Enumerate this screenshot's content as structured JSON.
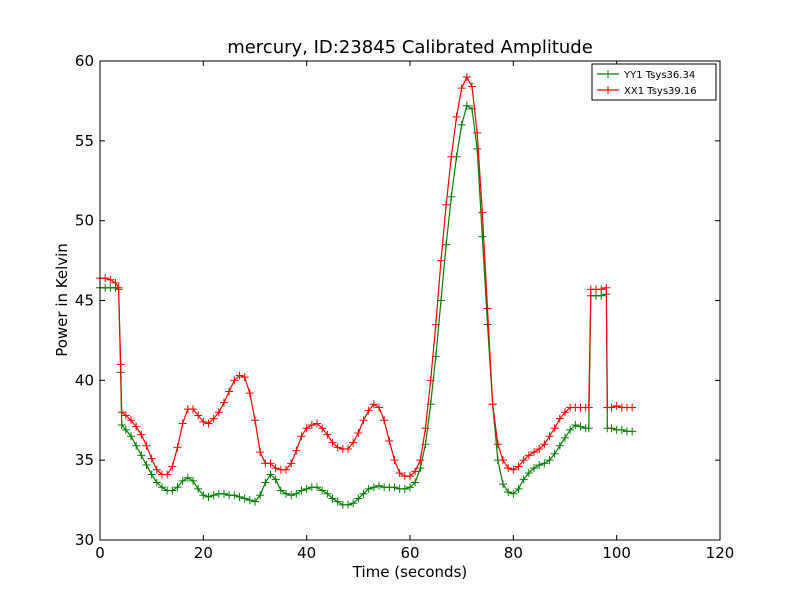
{
  "chart_data": {
    "type": "line",
    "title": "mercury, ID:23845 Calibrated Amplitude",
    "xlabel": "Time (seconds)",
    "ylabel": "Power in Kelvin",
    "xlim": [
      0,
      120
    ],
    "ylim": [
      30,
      60
    ],
    "xticks": [
      "0",
      "20",
      "40",
      "60",
      "80",
      "100",
      "120"
    ],
    "yticks": [
      "30",
      "35",
      "40",
      "45",
      "50",
      "55",
      "60"
    ],
    "grid": false,
    "legend_position": "top-right",
    "marker": "plus",
    "series": [
      {
        "name": "YY1 Tsys36.34",
        "color": "#008000",
        "points": [
          [
            0,
            45.8
          ],
          [
            1,
            45.8
          ],
          [
            2,
            45.8
          ],
          [
            3,
            45.8
          ],
          [
            3.6,
            45.7
          ],
          [
            4,
            40.5
          ],
          [
            4.2,
            37.2
          ],
          [
            5,
            36.9
          ],
          [
            6,
            36.5
          ],
          [
            7,
            35.9
          ],
          [
            8,
            35.3
          ],
          [
            9,
            34.7
          ],
          [
            10,
            34.1
          ],
          [
            11,
            33.6
          ],
          [
            12,
            33.3
          ],
          [
            13,
            33.1
          ],
          [
            14,
            33.1
          ],
          [
            15,
            33.3
          ],
          [
            16,
            33.7
          ],
          [
            17,
            33.9
          ],
          [
            18,
            33.7
          ],
          [
            19,
            33.2
          ],
          [
            20,
            32.8
          ],
          [
            21,
            32.7
          ],
          [
            22,
            32.8
          ],
          [
            23,
            32.9
          ],
          [
            24,
            32.9
          ],
          [
            25,
            32.8
          ],
          [
            26,
            32.8
          ],
          [
            27,
            32.7
          ],
          [
            28,
            32.6
          ],
          [
            29,
            32.5
          ],
          [
            30,
            32.4
          ],
          [
            31,
            32.8
          ],
          [
            32,
            33.6
          ],
          [
            33,
            34.1
          ],
          [
            34,
            33.8
          ],
          [
            35,
            33.1
          ],
          [
            36,
            32.9
          ],
          [
            37,
            32.8
          ],
          [
            38,
            32.9
          ],
          [
            39,
            33.1
          ],
          [
            40,
            33.2
          ],
          [
            41,
            33.3
          ],
          [
            42,
            33.3
          ],
          [
            43,
            33.1
          ],
          [
            44,
            32.9
          ],
          [
            45,
            32.6
          ],
          [
            46,
            32.4
          ],
          [
            47,
            32.2
          ],
          [
            48,
            32.2
          ],
          [
            49,
            32.3
          ],
          [
            50,
            32.6
          ],
          [
            51,
            32.9
          ],
          [
            52,
            33.2
          ],
          [
            53,
            33.3
          ],
          [
            54,
            33.4
          ],
          [
            55,
            33.3
          ],
          [
            56,
            33.3
          ],
          [
            57,
            33.3
          ],
          [
            58,
            33.2
          ],
          [
            59,
            33.2
          ],
          [
            60,
            33.3
          ],
          [
            61,
            33.6
          ],
          [
            62,
            34.5
          ],
          [
            63,
            36.0
          ],
          [
            64,
            38.5
          ],
          [
            65,
            41.5
          ],
          [
            66,
            45.0
          ],
          [
            67,
            48.5
          ],
          [
            68,
            51.5
          ],
          [
            69,
            54.0
          ],
          [
            70,
            56.0
          ],
          [
            71,
            57.2
          ],
          [
            72,
            57.0
          ],
          [
            73,
            54.5
          ],
          [
            74,
            49.0
          ],
          [
            75,
            43.5
          ],
          [
            76,
            38.5
          ],
          [
            77,
            35.0
          ],
          [
            78,
            33.5
          ],
          [
            79,
            33.0
          ],
          [
            80,
            32.9
          ],
          [
            81,
            33.2
          ],
          [
            82,
            33.8
          ],
          [
            83,
            34.2
          ],
          [
            84,
            34.5
          ],
          [
            85,
            34.7
          ],
          [
            86,
            34.8
          ],
          [
            87,
            35.0
          ],
          [
            88,
            35.4
          ],
          [
            89,
            35.9
          ],
          [
            90,
            36.4
          ],
          [
            91,
            36.9
          ],
          [
            92,
            37.2
          ],
          [
            93,
            37.1
          ],
          [
            94,
            37.0
          ],
          [
            94.6,
            37.0
          ],
          [
            95,
            45.3
          ],
          [
            96,
            45.3
          ],
          [
            97,
            45.3
          ],
          [
            98,
            45.4
          ],
          [
            98.2,
            37.0
          ],
          [
            99,
            37.0
          ],
          [
            100,
            36.9
          ],
          [
            101,
            36.9
          ],
          [
            102,
            36.8
          ],
          [
            103,
            36.8
          ]
        ]
      },
      {
        "name": "XX1 Tsys39.16",
        "color": "#ff0000",
        "points": [
          [
            0,
            46.4
          ],
          [
            1,
            46.4
          ],
          [
            2,
            46.3
          ],
          [
            3,
            46.1
          ],
          [
            3.6,
            45.8
          ],
          [
            4,
            41.0
          ],
          [
            4.2,
            38.0
          ],
          [
            5,
            37.8
          ],
          [
            6,
            37.5
          ],
          [
            7,
            37.1
          ],
          [
            8,
            36.6
          ],
          [
            9,
            35.9
          ],
          [
            10,
            35.1
          ],
          [
            11,
            34.4
          ],
          [
            12,
            34.1
          ],
          [
            13,
            34.1
          ],
          [
            14,
            34.6
          ],
          [
            15,
            35.8
          ],
          [
            16,
            37.3
          ],
          [
            17,
            38.2
          ],
          [
            18,
            38.2
          ],
          [
            19,
            37.8
          ],
          [
            20,
            37.4
          ],
          [
            21,
            37.3
          ],
          [
            22,
            37.6
          ],
          [
            23,
            38.0
          ],
          [
            24,
            38.6
          ],
          [
            25,
            39.3
          ],
          [
            26,
            40.0
          ],
          [
            27,
            40.3
          ],
          [
            28,
            40.2
          ],
          [
            29,
            39.2
          ],
          [
            30,
            37.5
          ],
          [
            31,
            35.5
          ],
          [
            32,
            34.8
          ],
          [
            33,
            34.8
          ],
          [
            34,
            34.5
          ],
          [
            35,
            34.4
          ],
          [
            36,
            34.4
          ],
          [
            37,
            34.8
          ],
          [
            38,
            35.6
          ],
          [
            39,
            36.5
          ],
          [
            40,
            37.0
          ],
          [
            41,
            37.2
          ],
          [
            42,
            37.3
          ],
          [
            43,
            37.0
          ],
          [
            44,
            36.6
          ],
          [
            45,
            36.1
          ],
          [
            46,
            35.8
          ],
          [
            47,
            35.7
          ],
          [
            48,
            35.7
          ],
          [
            49,
            36.1
          ],
          [
            50,
            36.7
          ],
          [
            51,
            37.5
          ],
          [
            52,
            38.1
          ],
          [
            53,
            38.5
          ],
          [
            54,
            38.3
          ],
          [
            55,
            37.5
          ],
          [
            56,
            36.2
          ],
          [
            57,
            35.0
          ],
          [
            58,
            34.2
          ],
          [
            59,
            34.0
          ],
          [
            60,
            34.0
          ],
          [
            61,
            34.3
          ],
          [
            62,
            35.0
          ],
          [
            63,
            37.0
          ],
          [
            64,
            40.0
          ],
          [
            65,
            43.5
          ],
          [
            66,
            47.5
          ],
          [
            67,
            51.0
          ],
          [
            68,
            54.0
          ],
          [
            69,
            56.5
          ],
          [
            70,
            58.3
          ],
          [
            71,
            59.0
          ],
          [
            72,
            58.4
          ],
          [
            73,
            55.5
          ],
          [
            74,
            50.5
          ],
          [
            75,
            44.5
          ],
          [
            76,
            38.5
          ],
          [
            77,
            36.0
          ],
          [
            78,
            35.0
          ],
          [
            79,
            34.5
          ],
          [
            80,
            34.4
          ],
          [
            81,
            34.6
          ],
          [
            82,
            35.0
          ],
          [
            83,
            35.3
          ],
          [
            84,
            35.5
          ],
          [
            85,
            35.7
          ],
          [
            86,
            36.0
          ],
          [
            87,
            36.5
          ],
          [
            88,
            37.0
          ],
          [
            89,
            37.6
          ],
          [
            90,
            38.0
          ],
          [
            91,
            38.3
          ],
          [
            92,
            38.3
          ],
          [
            93,
            38.3
          ],
          [
            94,
            38.3
          ],
          [
            94.6,
            38.3
          ],
          [
            95,
            45.7
          ],
          [
            96,
            45.7
          ],
          [
            97,
            45.7
          ],
          [
            98,
            45.8
          ],
          [
            98.2,
            38.3
          ],
          [
            99,
            38.3
          ],
          [
            100,
            38.4
          ],
          [
            101,
            38.3
          ],
          [
            102,
            38.3
          ],
          [
            103,
            38.3
          ]
        ]
      }
    ]
  }
}
